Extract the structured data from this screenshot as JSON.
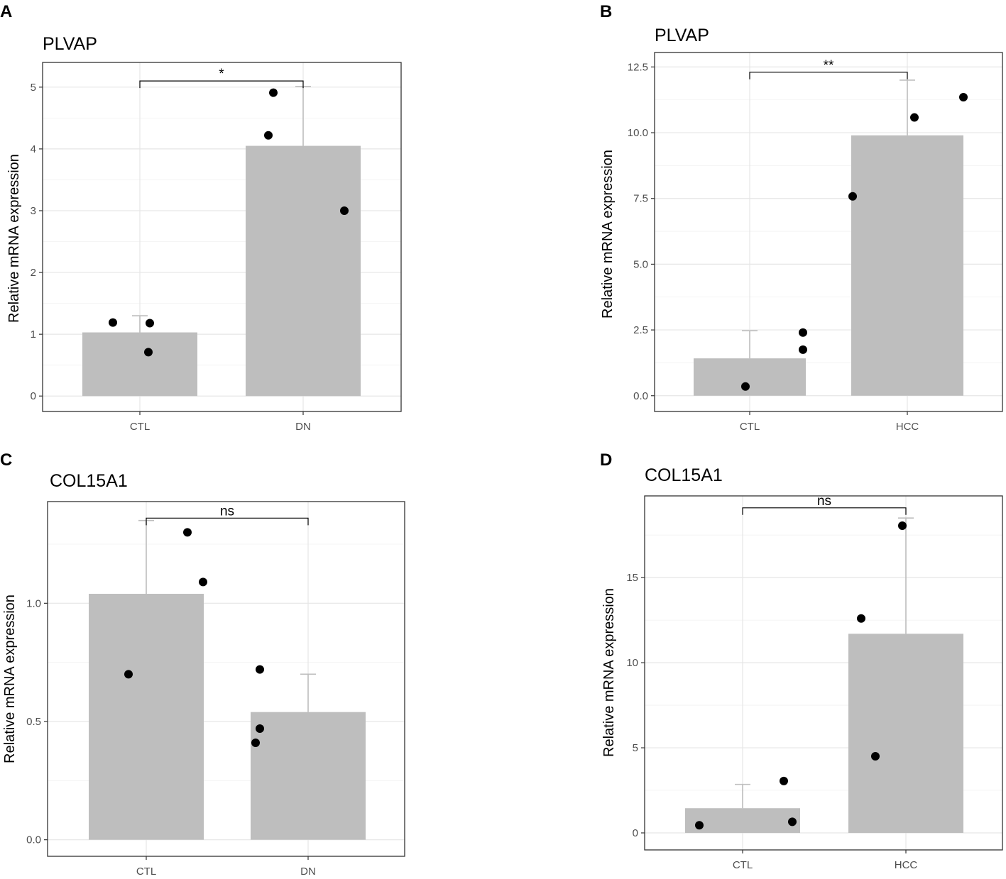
{
  "chart_data": [
    {
      "panel": "A",
      "type": "bar",
      "title": "PLVAP",
      "xlabel": "",
      "ylabel": "Relative mRNA expression",
      "categories": [
        "CTL",
        "DN"
      ],
      "values": [
        1.03,
        4.05
      ],
      "error_upper": [
        1.3,
        5.01
      ],
      "points": [
        [
          1.19,
          1.18,
          0.71
        ],
        [
          4.91,
          4.22,
          3.0
        ]
      ],
      "ylim": [
        -0.25,
        5.4
      ],
      "yticks": [
        0,
        1,
        2,
        3,
        4,
        5
      ],
      "yticks_labels": [
        "0",
        "1",
        "2",
        "3",
        "4",
        "5"
      ],
      "ygrid_minor": [
        0.5,
        1.5,
        2.5,
        3.5,
        4.5
      ],
      "significance": {
        "label": "*",
        "y": 5.1
      }
    },
    {
      "panel": "B",
      "type": "bar",
      "title": "PLVAP",
      "xlabel": "",
      "ylabel": "Relative mRNA expression",
      "categories": [
        "CTL",
        "HCC"
      ],
      "values": [
        1.42,
        9.9
      ],
      "error_upper": [
        2.47,
        12.0
      ],
      "points": [
        [
          2.4,
          1.75,
          0.35
        ],
        [
          10.58,
          11.35,
          7.58
        ]
      ],
      "ylim": [
        -0.6,
        13.05
      ],
      "yticks": [
        0,
        2.5,
        5,
        7.5,
        10,
        12.5
      ],
      "yticks_labels": [
        "0.0",
        "2.5",
        "5.0",
        "7.5",
        "10.0",
        "12.5"
      ],
      "ygrid_minor": [
        1.25,
        3.75,
        6.25,
        8.75,
        11.25
      ],
      "significance": {
        "label": "**",
        "y": 12.3
      }
    },
    {
      "panel": "C",
      "type": "bar",
      "title": "COL15A1",
      "xlabel": "",
      "ylabel": "Relative mRNA expression",
      "categories": [
        "CTL",
        "DN"
      ],
      "values": [
        1.04,
        0.54
      ],
      "error_upper": [
        1.35,
        0.7
      ],
      "points": [
        [
          1.3,
          1.09,
          0.7
        ],
        [
          0.72,
          0.47,
          0.41
        ]
      ],
      "ylim": [
        -0.07,
        1.43
      ],
      "yticks": [
        0,
        0.5,
        1.0
      ],
      "yticks_labels": [
        "0.0",
        "0.5",
        "1.0"
      ],
      "ygrid_minor": [
        0.25,
        0.75,
        1.25
      ],
      "significance": {
        "label": "ns",
        "y": 1.36
      }
    },
    {
      "panel": "D",
      "type": "bar",
      "title": "COL15A1",
      "xlabel": "",
      "ylabel": "Relative mRNA expression",
      "categories": [
        "CTL",
        "HCC"
      ],
      "values": [
        1.45,
        11.7
      ],
      "error_upper": [
        2.85,
        18.5
      ],
      "points": [
        [
          3.05,
          0.65,
          0.45
        ],
        [
          12.6,
          18.05,
          4.5
        ]
      ],
      "ylim": [
        -1.0,
        19.8
      ],
      "yticks": [
        0,
        5,
        10,
        15
      ],
      "yticks_labels": [
        "0",
        "5",
        "10",
        "15"
      ],
      "ygrid_minor": [
        2.5,
        7.5,
        12.5,
        17.5
      ],
      "significance": {
        "label": "ns",
        "y": 19.1
      }
    }
  ]
}
